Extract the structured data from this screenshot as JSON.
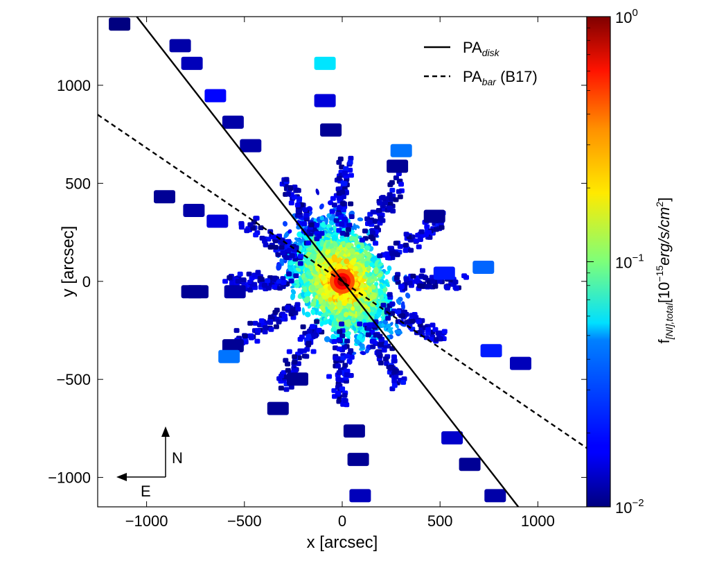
{
  "chart_data": {
    "type": "scatter",
    "title": "",
    "xlabel": "x [arcsec]",
    "ylabel": "y [arcsec]",
    "xlim": [
      -1250,
      1250
    ],
    "ylim": [
      -1150,
      1350
    ],
    "x_ticks": [
      -1000,
      -500,
      0,
      500,
      1000
    ],
    "x_tick_labels": [
      "−1000",
      "−500",
      "0",
      "500",
      "1000"
    ],
    "y_ticks": [
      -1000,
      -500,
      0,
      500,
      1000
    ],
    "y_tick_labels": [
      "−1000",
      "−500",
      "0",
      "500",
      "1000"
    ],
    "grid": false,
    "legend_position": "top-right",
    "lines": [
      {
        "name": "PA",
        "subscript": "disk",
        "suffix": "",
        "style": "solid",
        "x": [
          -1050,
          900
        ],
        "y": [
          1350,
          -1150
        ]
      },
      {
        "name": "PA",
        "subscript": "bar",
        "suffix": " (B17)",
        "style": "dashed",
        "x": [
          -1250,
          1250
        ],
        "y": [
          850,
          -850
        ]
      }
    ],
    "colorbar": {
      "label_main": "f",
      "label_sub": "[NI],total",
      "label_units": "[10",
      "label_exp": "−15",
      "label_tail": "erg/s/cm",
      "label_tail_exp": "2",
      "label_close": "]",
      "scale": "log",
      "range": [
        0.01,
        1
      ],
      "tick_values": [
        0.01,
        0.1,
        1
      ],
      "tick_base": "10",
      "tick_exps": [
        "−2",
        "−1",
        "0"
      ],
      "colormap": "jet"
    },
    "compass": {
      "north": "N",
      "east": "E"
    },
    "arm_angles_deg": [
      0,
      30,
      60,
      90,
      120,
      150,
      180,
      210,
      240,
      270,
      300,
      330
    ],
    "central_peak": {
      "x": 0,
      "y": 0,
      "value": 0.95
    },
    "sample_points": [
      {
        "x": -1140,
        "y": 1310,
        "value": 0.01
      },
      {
        "x": -830,
        "y": 1200,
        "value": 0.012
      },
      {
        "x": -770,
        "y": 1110,
        "value": 0.013
      },
      {
        "x": -650,
        "y": 945,
        "value": 0.018
      },
      {
        "x": -560,
        "y": 810,
        "value": 0.012
      },
      {
        "x": -470,
        "y": 690,
        "value": 0.012
      },
      {
        "x": -90,
        "y": 1110,
        "value": 0.05
      },
      {
        "x": -90,
        "y": 920,
        "value": 0.015
      },
      {
        "x": -60,
        "y": 770,
        "value": 0.011
      },
      {
        "x": 300,
        "y": 665,
        "value": 0.03
      },
      {
        "x": 280,
        "y": 585,
        "value": 0.011
      },
      {
        "x": -910,
        "y": 430,
        "value": 0.011
      },
      {
        "x": -760,
        "y": 360,
        "value": 0.012
      },
      {
        "x": -640,
        "y": 305,
        "value": 0.015
      },
      {
        "x": -740,
        "y": -55,
        "value": 0.011
      },
      {
        "x": -550,
        "y": -55,
        "value": 0.012
      },
      {
        "x": 720,
        "y": 70,
        "value": 0.028
      },
      {
        "x": 520,
        "y": 40,
        "value": 0.02
      },
      {
        "x": 470,
        "y": 330,
        "value": 0.011
      },
      {
        "x": -560,
        "y": -330,
        "value": 0.011
      },
      {
        "x": -580,
        "y": -385,
        "value": 0.03
      },
      {
        "x": 760,
        "y": -355,
        "value": 0.02
      },
      {
        "x": 910,
        "y": -420,
        "value": 0.013
      },
      {
        "x": -230,
        "y": -500,
        "value": 0.011
      },
      {
        "x": 60,
        "y": -765,
        "value": 0.011
      },
      {
        "x": 80,
        "y": -910,
        "value": 0.011
      },
      {
        "x": 90,
        "y": -1095,
        "value": 0.013
      },
      {
        "x": -330,
        "y": -650,
        "value": 0.011
      },
      {
        "x": 560,
        "y": -800,
        "value": 0.014
      },
      {
        "x": 650,
        "y": -935,
        "value": 0.011
      },
      {
        "x": 780,
        "y": -1095,
        "value": 0.012
      },
      {
        "x": -770,
        "y": -55,
        "value": 0.011
      }
    ]
  }
}
